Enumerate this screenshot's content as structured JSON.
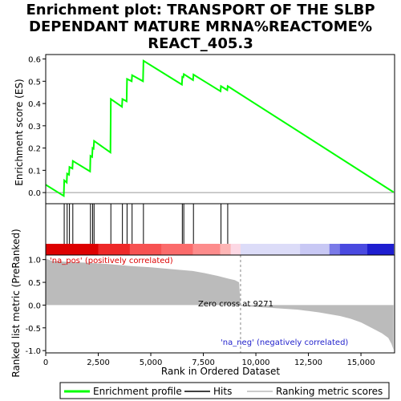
{
  "title_lines": [
    "Enrichment plot: TRANSPORT OF THE SLBP",
    "DEPENDANT MATURE MRNA%REACTOME%",
    "REACT_405.3"
  ],
  "chart_data": {
    "type": "line",
    "xlabel": "Rank in Ordered Dataset",
    "top_ylabel": "Enrichment score (ES)",
    "bottom_ylabel": "Ranked list metric (PreRanked)",
    "x_ticks": [
      0,
      2500,
      5000,
      7500,
      10000,
      12500,
      15000
    ],
    "x_tick_labels": [
      "0",
      "2,500",
      "5,000",
      "7,500",
      "10,000",
      "12,500",
      "15,000"
    ],
    "es_ylim": [
      -0.05,
      0.62
    ],
    "es_ticks": [
      0.0,
      0.1,
      0.2,
      0.3,
      0.4,
      0.5,
      0.6
    ],
    "es_tick_labels": [
      "0.0",
      "0.1",
      "0.2",
      "0.3",
      "0.4",
      "0.5",
      "0.6"
    ],
    "metric_ylim": [
      -1.05,
      1.1
    ],
    "metric_ticks": [
      -1.0,
      -0.5,
      0.0,
      0.5,
      1.0
    ],
    "metric_tick_labels": [
      "-1.0",
      "-0.5",
      "0.0",
      "0.5",
      "1.0"
    ],
    "x_max": 16600,
    "hits": [
      880,
      1020,
      1130,
      1290,
      2130,
      2230,
      2300,
      3100,
      3650,
      3870,
      4110,
      4650,
      6500,
      6570,
      7030,
      8340,
      8660
    ],
    "es_series": {
      "name": "Enrichment profile",
      "color": "#00ff00",
      "x": [
        0,
        860,
        880,
        1000,
        1020,
        1110,
        1130,
        1270,
        1290,
        2110,
        2130,
        2210,
        2230,
        2280,
        2300,
        3080,
        3100,
        3630,
        3650,
        3850,
        3870,
        4090,
        4110,
        4630,
        4650,
        6480,
        6500,
        6550,
        6570,
        7010,
        7030,
        8320,
        8340,
        8640,
        8660,
        16550
      ],
      "y": [
        0.035,
        -0.015,
        0.055,
        0.045,
        0.085,
        0.08,
        0.115,
        0.108,
        0.142,
        0.095,
        0.165,
        0.16,
        0.2,
        0.197,
        0.232,
        0.18,
        0.42,
        0.385,
        0.42,
        0.41,
        0.51,
        0.5,
        0.527,
        0.5,
        0.592,
        0.485,
        0.52,
        0.518,
        0.532,
        0.505,
        0.53,
        0.455,
        0.478,
        0.46,
        0.478,
        0.002
      ]
    },
    "metric_series": {
      "name": "Ranking metric scores",
      "color": "#bbbbbb",
      "x": [
        0,
        300,
        1000,
        2000,
        3000,
        4000,
        5000,
        6000,
        7000,
        7600,
        8200,
        8700,
        9000,
        9200,
        9271,
        9300,
        10000,
        11000,
        12000,
        12500,
        13000,
        13500,
        14000,
        14500,
        15000,
        15500,
        16000,
        16300,
        16450,
        16550
      ],
      "y": [
        1.02,
        0.97,
        0.95,
        0.93,
        0.9,
        0.86,
        0.83,
        0.79,
        0.75,
        0.7,
        0.64,
        0.58,
        0.55,
        0.5,
        0.0,
        -0.02,
        -0.04,
        -0.07,
        -0.1,
        -0.13,
        -0.16,
        -0.2,
        -0.24,
        -0.3,
        -0.38,
        -0.5,
        -0.62,
        -0.72,
        -0.85,
        -0.98
      ]
    },
    "hits_label": "Hits",
    "zero_cross_label": "Zero cross at 9271",
    "pos_label": "'na_pos' (positively correlated)",
    "neg_label": "'na_neg' (negatively correlated)",
    "zero_cross": 9271,
    "color_bar": [
      {
        "x0": 0,
        "x1": 2500,
        "color": "#dd0000"
      },
      {
        "x0": 2500,
        "x1": 4000,
        "color": "#ee2828"
      },
      {
        "x0": 4000,
        "x1": 5500,
        "color": "#f75252"
      },
      {
        "x0": 5500,
        "x1": 7000,
        "color": "#fb6b6b"
      },
      {
        "x0": 7000,
        "x1": 8300,
        "color": "#fd8c8c"
      },
      {
        "x0": 8300,
        "x1": 8800,
        "color": "#fdb5b5"
      },
      {
        "x0": 8800,
        "x1": 9271,
        "color": "#fcd8e4"
      },
      {
        "x0": 9271,
        "x1": 12100,
        "color": "#dcdcf8"
      },
      {
        "x0": 12100,
        "x1": 13500,
        "color": "#c8c8f4"
      },
      {
        "x0": 13500,
        "x1": 14000,
        "color": "#7a7ae8"
      },
      {
        "x0": 14000,
        "x1": 15300,
        "color": "#4a4ae0"
      },
      {
        "x0": 15300,
        "x1": 16550,
        "color": "#1e1ed0"
      }
    ],
    "legend": [
      {
        "label": "Enrichment profile",
        "color": "#00ff00"
      },
      {
        "label": "Hits",
        "color": "#000000"
      },
      {
        "label": "Ranking metric scores",
        "color": "#bbbbbb"
      }
    ]
  }
}
